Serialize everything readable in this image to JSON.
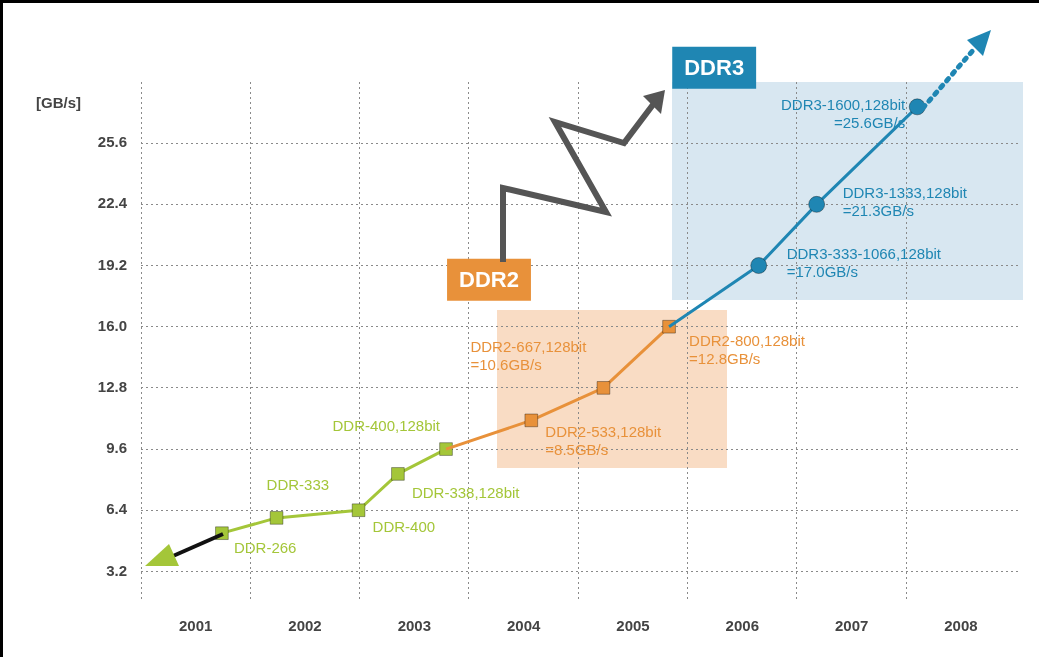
{
  "chart_data": {
    "type": "line",
    "ylabel": "[GB/s]",
    "xlim": [
      2001,
      2009.04
    ],
    "xticks": [
      {
        "value": 2001,
        "label": null
      },
      {
        "value": 2001.5,
        "label": "2001"
      },
      {
        "value": 2002,
        "label": null
      },
      {
        "value": 2002.5,
        "label": "2002"
      },
      {
        "value": 2003,
        "label": null
      },
      {
        "value": 2003.5,
        "label": "2003"
      },
      {
        "value": 2004,
        "label": null
      },
      {
        "value": 2004.5,
        "label": "2004"
      },
      {
        "value": 2005,
        "label": null
      },
      {
        "value": 2005.5,
        "label": "2005"
      },
      {
        "value": 2006,
        "label": null
      },
      {
        "value": 2006.5,
        "label": "2006"
      },
      {
        "value": 2007,
        "label": null
      },
      {
        "value": 2007.5,
        "label": "2007"
      },
      {
        "value": 2008,
        "label": null
      },
      {
        "value": 2008.5,
        "label": "2008"
      }
    ],
    "ylim": [
      1.6,
      28.8
    ],
    "yticks": [
      3.2,
      6.4,
      9.6,
      12.8,
      {
        "value": 16,
        "label": "16.0"
      },
      19.2,
      22.4,
      25.6
    ],
    "grid": true,
    "series": [
      {
        "color": "#a4c639",
        "marker": "square",
        "x": [
          2001.74,
          2002.24,
          2002.99,
          2003.35,
          2003.79
        ],
        "values": [
          5.2,
          6.0,
          6.4,
          8.3,
          9.6
        ]
      },
      {
        "name": "DDR2",
        "color": "#e8913a",
        "marker": "square",
        "x": [
          2003.79,
          2004.57,
          2005.23,
          2005.83
        ],
        "values": [
          9.6,
          11.1,
          12.8,
          16.0
        ]
      },
      {
        "name": "DDR3",
        "color": "#1f86b3",
        "marker": "circle",
        "x": [
          2005.83,
          2006.65,
          2007.18,
          2008.1
        ],
        "values": [
          16.0,
          19.2,
          22.4,
          27.5
        ]
      }
    ],
    "annotations": [
      {
        "text": "DDR-266",
        "x": 2001.74,
        "y": 5.2
      },
      {
        "text": "DDR-333",
        "x": 2002.24,
        "y": 6.0
      },
      {
        "text": "DDR-400",
        "x": 2002.99,
        "y": 6.4
      },
      {
        "text": "DDR-338,128bit",
        "x": 2003.35,
        "y": 8.3
      },
      {
        "text": "DDR-400,128bit",
        "x": 2003.79,
        "y": 9.6
      },
      {
        "text": "DDR2-533,128bit\n=8.5GB/s",
        "x": 2004.57,
        "y": 11.1
      },
      {
        "text": "DDR2-667,128bit\n=10.6GB/s",
        "x": 2005.23,
        "y": 12.8
      },
      {
        "text": "DDR2-800,128bit\n=12.8GB/s",
        "x": 2005.83,
        "y": 16.0
      },
      {
        "text": "DDR3-333-1066,128bit\n=17.0GB/s",
        "x": 2006.65,
        "y": 19.2
      },
      {
        "text": "DDR3-1333,128bit\n=21.3GB/s",
        "x": 2007.18,
        "y": 22.4
      },
      {
        "text": "DDR3-1600,128bit\n=25.6GB/s",
        "x": 2008.1,
        "y": 27.5
      }
    ]
  }
}
